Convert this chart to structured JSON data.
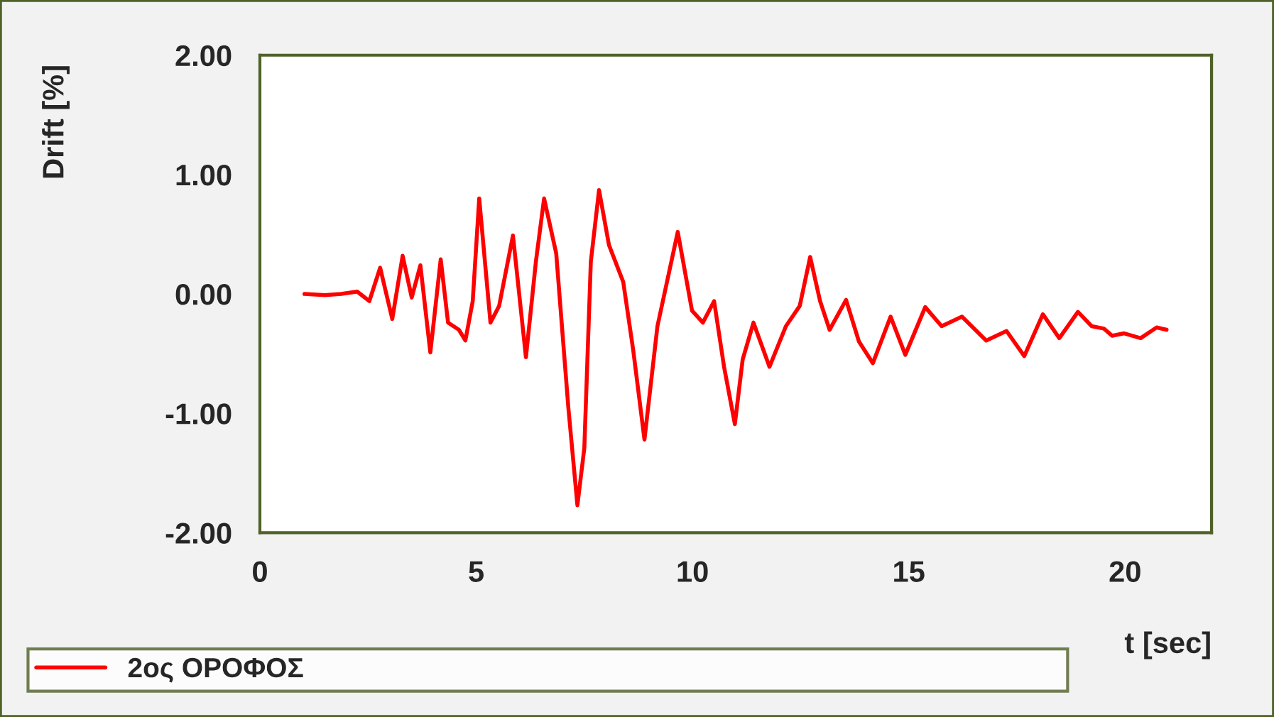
{
  "chart_data": {
    "type": "line",
    "xlabel": "t [sec]",
    "ylabel": "Drift [%]",
    "xlim": [
      0,
      22
    ],
    "xticks": [
      0,
      5,
      10,
      15,
      20
    ],
    "ylim": [
      -2,
      2
    ],
    "yticks": [
      {
        "value": 2,
        "label": "2.00"
      },
      {
        "value": 1,
        "label": "1.00"
      },
      {
        "value": 0,
        "label": "0.00"
      },
      {
        "value": -1,
        "label": "-1.00"
      },
      {
        "value": -2,
        "label": "-2.00"
      }
    ],
    "grid": false,
    "legend": "bottom",
    "marker": "none",
    "line_style": "solid",
    "series": [
      {
        "name": "2ος ΟΡΟΦΟΣ",
        "color": "#ff0000",
        "x": [
          1.03,
          1.5,
          1.88,
          2.25,
          2.53,
          2.78,
          3.06,
          3.3,
          3.51,
          3.71,
          3.94,
          4.18,
          4.35,
          4.6,
          4.75,
          4.92,
          5.07,
          5.22,
          5.33,
          5.53,
          5.85,
          6.15,
          6.38,
          6.57,
          6.85,
          7.13,
          7.34,
          7.5,
          7.65,
          7.84,
          8.07,
          8.4,
          8.63,
          8.89,
          9.19,
          9.66,
          9.99,
          10.24,
          10.5,
          10.73,
          10.98,
          11.16,
          11.41,
          11.78,
          12.16,
          12.48,
          12.72,
          12.95,
          13.17,
          13.55,
          13.85,
          14.17,
          14.58,
          14.92,
          15.38,
          15.76,
          16.23,
          16.79,
          17.26,
          17.67,
          18.1,
          18.48,
          18.91,
          19.23,
          19.51,
          19.7,
          19.98,
          20.36,
          20.73,
          20.96
        ],
        "values": [
          0.0,
          -0.01,
          0.0,
          0.02,
          -0.06,
          0.22,
          -0.21,
          0.32,
          -0.03,
          0.24,
          -0.49,
          0.29,
          -0.24,
          -0.3,
          -0.39,
          -0.06,
          0.8,
          0.2,
          -0.24,
          -0.1,
          0.49,
          -0.53,
          0.27,
          0.8,
          0.34,
          -0.95,
          -1.77,
          -1.29,
          0.27,
          0.87,
          0.41,
          0.1,
          -0.47,
          -1.22,
          -0.27,
          0.52,
          -0.14,
          -0.24,
          -0.06,
          -0.61,
          -1.09,
          -0.55,
          -0.24,
          -0.61,
          -0.27,
          -0.1,
          0.31,
          -0.06,
          -0.3,
          -0.05,
          -0.4,
          -0.58,
          -0.19,
          -0.51,
          -0.11,
          -0.27,
          -0.19,
          -0.39,
          -0.31,
          -0.52,
          -0.17,
          -0.37,
          -0.15,
          -0.27,
          -0.29,
          -0.35,
          -0.33,
          -0.37,
          -0.28,
          -0.3
        ]
      }
    ]
  }
}
